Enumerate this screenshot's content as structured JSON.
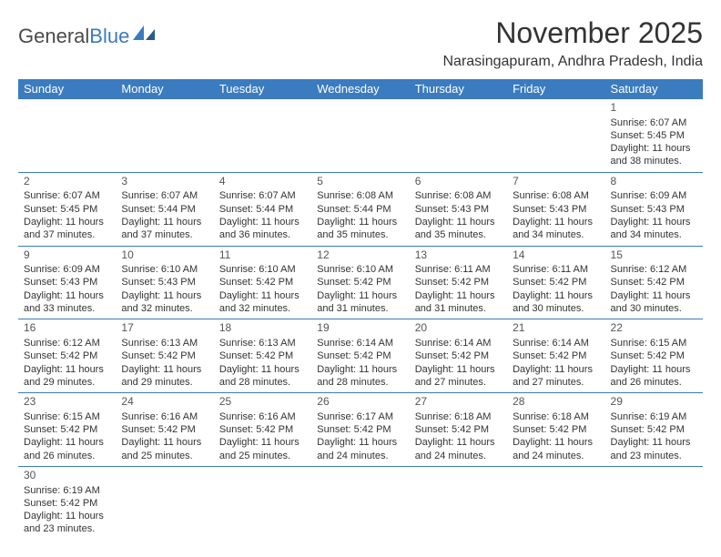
{
  "logo": {
    "text1": "General",
    "text2": "Blue"
  },
  "title": "November 2025",
  "location": "Narasingapuram, Andhra Pradesh, India",
  "colors": {
    "header_bg": "#3b7bbf",
    "header_text": "#ffffff",
    "border": "#3b7bbf",
    "text": "#333333",
    "logo_gray": "#4a4a4a",
    "logo_blue": "#3b7bbf"
  },
  "weekdays": [
    "Sunday",
    "Monday",
    "Tuesday",
    "Wednesday",
    "Thursday",
    "Friday",
    "Saturday"
  ],
  "cells": [
    [
      null,
      null,
      null,
      null,
      null,
      null,
      {
        "n": "1",
        "sr": "6:07 AM",
        "ss": "5:45 PM",
        "dl": "11 hours and 38 minutes."
      }
    ],
    [
      {
        "n": "2",
        "sr": "6:07 AM",
        "ss": "5:45 PM",
        "dl": "11 hours and 37 minutes."
      },
      {
        "n": "3",
        "sr": "6:07 AM",
        "ss": "5:44 PM",
        "dl": "11 hours and 37 minutes."
      },
      {
        "n": "4",
        "sr": "6:07 AM",
        "ss": "5:44 PM",
        "dl": "11 hours and 36 minutes."
      },
      {
        "n": "5",
        "sr": "6:08 AM",
        "ss": "5:44 PM",
        "dl": "11 hours and 35 minutes."
      },
      {
        "n": "6",
        "sr": "6:08 AM",
        "ss": "5:43 PM",
        "dl": "11 hours and 35 minutes."
      },
      {
        "n": "7",
        "sr": "6:08 AM",
        "ss": "5:43 PM",
        "dl": "11 hours and 34 minutes."
      },
      {
        "n": "8",
        "sr": "6:09 AM",
        "ss": "5:43 PM",
        "dl": "11 hours and 34 minutes."
      }
    ],
    [
      {
        "n": "9",
        "sr": "6:09 AM",
        "ss": "5:43 PM",
        "dl": "11 hours and 33 minutes."
      },
      {
        "n": "10",
        "sr": "6:10 AM",
        "ss": "5:43 PM",
        "dl": "11 hours and 32 minutes."
      },
      {
        "n": "11",
        "sr": "6:10 AM",
        "ss": "5:42 PM",
        "dl": "11 hours and 32 minutes."
      },
      {
        "n": "12",
        "sr": "6:10 AM",
        "ss": "5:42 PM",
        "dl": "11 hours and 31 minutes."
      },
      {
        "n": "13",
        "sr": "6:11 AM",
        "ss": "5:42 PM",
        "dl": "11 hours and 31 minutes."
      },
      {
        "n": "14",
        "sr": "6:11 AM",
        "ss": "5:42 PM",
        "dl": "11 hours and 30 minutes."
      },
      {
        "n": "15",
        "sr": "6:12 AM",
        "ss": "5:42 PM",
        "dl": "11 hours and 30 minutes."
      }
    ],
    [
      {
        "n": "16",
        "sr": "6:12 AM",
        "ss": "5:42 PM",
        "dl": "11 hours and 29 minutes."
      },
      {
        "n": "17",
        "sr": "6:13 AM",
        "ss": "5:42 PM",
        "dl": "11 hours and 29 minutes."
      },
      {
        "n": "18",
        "sr": "6:13 AM",
        "ss": "5:42 PM",
        "dl": "11 hours and 28 minutes."
      },
      {
        "n": "19",
        "sr": "6:14 AM",
        "ss": "5:42 PM",
        "dl": "11 hours and 28 minutes."
      },
      {
        "n": "20",
        "sr": "6:14 AM",
        "ss": "5:42 PM",
        "dl": "11 hours and 27 minutes."
      },
      {
        "n": "21",
        "sr": "6:14 AM",
        "ss": "5:42 PM",
        "dl": "11 hours and 27 minutes."
      },
      {
        "n": "22",
        "sr": "6:15 AM",
        "ss": "5:42 PM",
        "dl": "11 hours and 26 minutes."
      }
    ],
    [
      {
        "n": "23",
        "sr": "6:15 AM",
        "ss": "5:42 PM",
        "dl": "11 hours and 26 minutes."
      },
      {
        "n": "24",
        "sr": "6:16 AM",
        "ss": "5:42 PM",
        "dl": "11 hours and 25 minutes."
      },
      {
        "n": "25",
        "sr": "6:16 AM",
        "ss": "5:42 PM",
        "dl": "11 hours and 25 minutes."
      },
      {
        "n": "26",
        "sr": "6:17 AM",
        "ss": "5:42 PM",
        "dl": "11 hours and 24 minutes."
      },
      {
        "n": "27",
        "sr": "6:18 AM",
        "ss": "5:42 PM",
        "dl": "11 hours and 24 minutes."
      },
      {
        "n": "28",
        "sr": "6:18 AM",
        "ss": "5:42 PM",
        "dl": "11 hours and 24 minutes."
      },
      {
        "n": "29",
        "sr": "6:19 AM",
        "ss": "5:42 PM",
        "dl": "11 hours and 23 minutes."
      }
    ],
    [
      {
        "n": "30",
        "sr": "6:19 AM",
        "ss": "5:42 PM",
        "dl": "11 hours and 23 minutes."
      },
      null,
      null,
      null,
      null,
      null,
      null
    ]
  ],
  "labels": {
    "sunrise": "Sunrise: ",
    "sunset": "Sunset: ",
    "daylight": "Daylight: "
  }
}
